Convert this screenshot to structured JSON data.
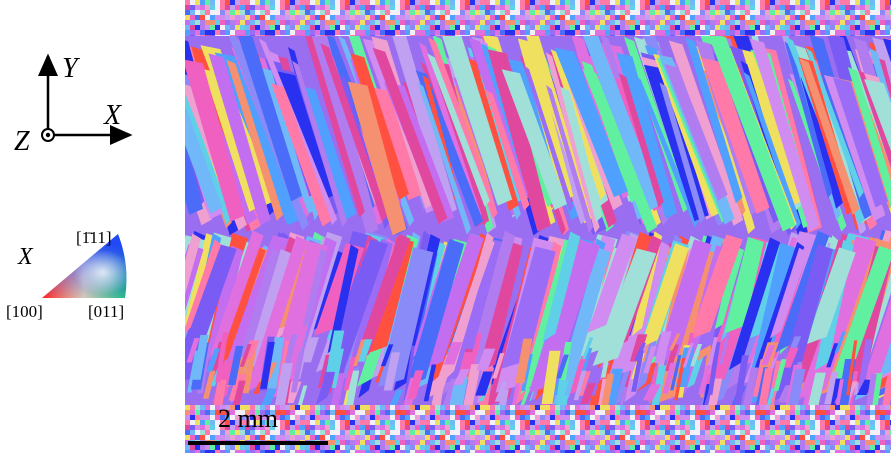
{
  "axes": {
    "y_label": "Y",
    "x_label": "X",
    "z_label": "Z"
  },
  "ipf_legend": {
    "direction": "X",
    "top_label": "[1̄11]",
    "left_label": "[100]",
    "right_label": "[011]"
  },
  "scale_bar": {
    "label": "2 mm"
  }
}
